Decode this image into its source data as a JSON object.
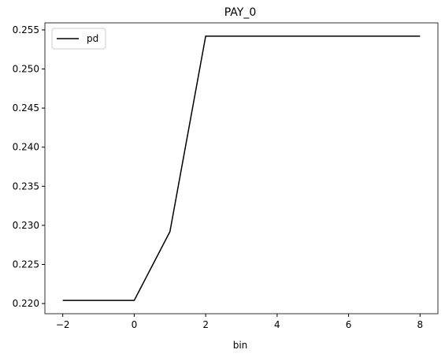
{
  "chart_data": {
    "type": "line",
    "title": "PAY_0",
    "x_label": "bin",
    "x": [
      -2,
      -1,
      0,
      1,
      2,
      3,
      4,
      5,
      6,
      7,
      8
    ],
    "series": [
      {
        "name": "pd",
        "color": "#000000",
        "values": [
          0.2204,
          0.2204,
          0.2204,
          0.2292,
          0.2542,
          0.2542,
          0.2542,
          0.2542,
          0.2542,
          0.2542,
          0.2542
        ]
      }
    ],
    "xlim": [
      -2.5,
      8.5
    ],
    "ylim": [
      0.2187,
      0.2559
    ],
    "xticks": [
      {
        "value": -2,
        "label": "−2"
      },
      0,
      2,
      4,
      6,
      8
    ],
    "yticks": [
      {
        "value": 0.22,
        "label": "0.220"
      },
      0.225,
      {
        "value": 0.23,
        "label": "0.230"
      },
      0.235,
      {
        "value": 0.24,
        "label": "0.240"
      },
      0.245,
      {
        "value": 0.25,
        "label": "0.250"
      },
      0.255
    ],
    "grid": false,
    "legend": "upper left"
  }
}
